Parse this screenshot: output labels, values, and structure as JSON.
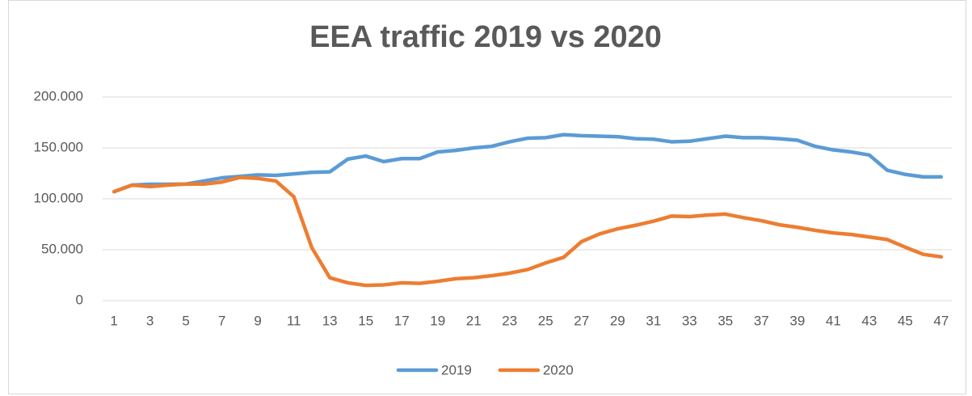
{
  "chart_data": {
    "type": "line",
    "title": "EEA traffic 2019 vs 2020",
    "categories": [
      1,
      null,
      3,
      null,
      5,
      null,
      7,
      null,
      9,
      null,
      11,
      null,
      13,
      null,
      15,
      null,
      17,
      null,
      19,
      null,
      21,
      null,
      23,
      null,
      25,
      null,
      27,
      null,
      29,
      null,
      31,
      null,
      33,
      null,
      35,
      null,
      37,
      null,
      39,
      null,
      41,
      null,
      43,
      null,
      45,
      null,
      47
    ],
    "series": [
      {
        "name": "2019",
        "color": "#5b9bd5",
        "values": [
          107000,
          113500,
          114300,
          114300,
          114500,
          117500,
          120600,
          122000,
          123500,
          123000,
          124500,
          126000,
          126500,
          139000,
          142000,
          136500,
          139500,
          139500,
          146000,
          147500,
          150000,
          151500,
          156000,
          159500,
          160000,
          163000,
          162000,
          161500,
          161000,
          159000,
          158500,
          156000,
          156500,
          159000,
          161500,
          160000,
          160000,
          159000,
          157500,
          151500,
          148000,
          146000,
          143000,
          128000,
          124000,
          121500,
          121500
        ]
      },
      {
        "name": "2020",
        "color": "#ed7d31",
        "values": [
          107000,
          113500,
          112000,
          113500,
          114500,
          114500,
          116500,
          121000,
          120000,
          117500,
          102000,
          52000,
          22500,
          17500,
          15000,
          15500,
          17500,
          17000,
          19000,
          21500,
          22500,
          24500,
          27000,
          30500,
          37000,
          42500,
          58000,
          65500,
          70500,
          74000,
          78000,
          83000,
          82500,
          84000,
          85000,
          81500,
          78500,
          74500,
          72000,
          69000,
          66500,
          65000,
          62500,
          60000,
          52500,
          45500,
          43000
        ]
      }
    ],
    "ylim": [
      0,
      200000
    ],
    "yticks": [
      0,
      {
        "value": 50000,
        "label": "50.000"
      },
      {
        "value": 100000,
        "label": "100.000"
      },
      {
        "value": 150000,
        "label": "150.000"
      },
      {
        "value": 200000,
        "label": "200.000"
      }
    ],
    "grid": true,
    "legend": "bottom"
  }
}
